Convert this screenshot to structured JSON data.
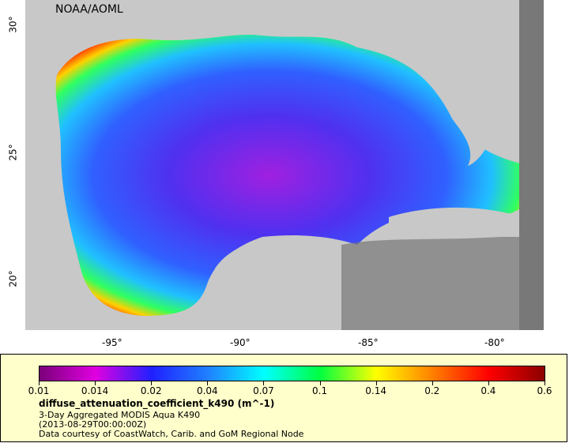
{
  "map": {
    "credit": "NOAA/AOML",
    "x_ticks": [
      "-95°",
      "-90°",
      "-85°",
      "-80°"
    ],
    "y_ticks": [
      "30°",
      "25°",
      "20°"
    ],
    "land_color": "#c8c8c8",
    "nodata_color": "#787878"
  },
  "legend": {
    "variable": "diffuse_attenuation_coefficient_k490 (m^-1)",
    "description": "3-Day Aggregated MODIS Aqua K490",
    "time": "(2013-08-29T00:00:00Z)",
    "courtesy": "Data courtesy of CoastWatch, Carib. and GoM Regional Node",
    "scale_labels": [
      "0.01",
      "0.014",
      "0.02",
      "0.04",
      "0.07",
      "0.1",
      "0.14",
      "0.2",
      "0.4",
      "0.6"
    ],
    "scale_colors": [
      "#7a007a",
      "#e000e0",
      "#2020ff",
      "#2080ff",
      "#00ffff",
      "#00ff40",
      "#ffff00",
      "#ff8000",
      "#ff0000",
      "#8b0000"
    ]
  }
}
